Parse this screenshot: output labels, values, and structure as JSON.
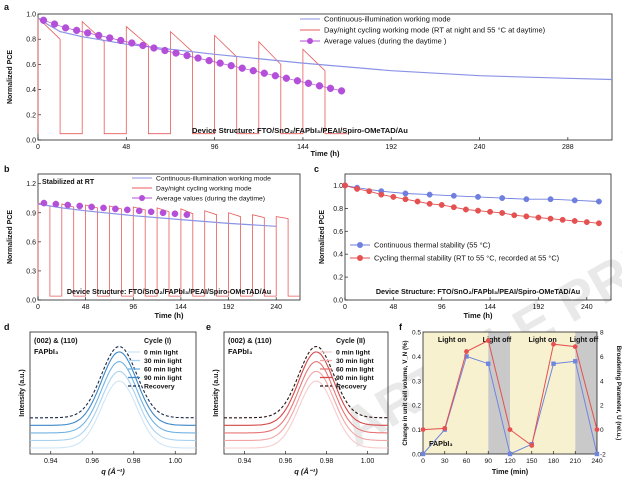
{
  "watermark": "ARTICLE PREVIEW",
  "chart_data": [
    {
      "panel": "a",
      "type": "line",
      "xlabel": "Time (h)",
      "ylabel": "Normalized PCE",
      "xlim": [
        0,
        312
      ],
      "ylim": [
        0,
        1.0
      ],
      "xticks": [
        0,
        48,
        96,
        144,
        192,
        240,
        288
      ],
      "yticks": [
        0.0,
        0.2,
        0.4,
        0.6,
        0.8,
        1.0
      ],
      "annotation": "Device Structure: FTO/SnO₂/FAPbI₃/PEAI/Spiro-OMeTAD/Au",
      "legend": [
        "Continuous-illumination working mode",
        "Day/night cycling working mode (RT at night and 55 °C at daytime)",
        "Average values (during the daytime )"
      ],
      "series": [
        {
          "name": "Continuous-illumination working mode",
          "color": "#8b93e6",
          "x": [
            0,
            5,
            12,
            24,
            48,
            96,
            144,
            192,
            240,
            288,
            312
          ],
          "y": [
            0.97,
            0.92,
            0.86,
            0.82,
            0.76,
            0.68,
            0.61,
            0.55,
            0.51,
            0.49,
            0.48
          ]
        },
        {
          "name": "Day/night cycling working mode (RT at night and 55 °C at daytime)",
          "color": "#e85a5a",
          "cycles": {
            "start": 0,
            "period": 24,
            "day_hours": 12,
            "count": 7,
            "night_value": 0.05,
            "day_start": [
              0.97,
              0.94,
              0.9,
              0.86,
              0.83,
              0.78,
              0.72
            ],
            "day_end": [
              0.8,
              0.78,
              0.75,
              0.7,
              0.66,
              0.6,
              0.55
            ]
          }
        },
        {
          "name": "Average values (during the daytime )",
          "color": "#b44fd9",
          "x": [
            3,
            9,
            15,
            21,
            27,
            33,
            39,
            45,
            51,
            57,
            63,
            69,
            75,
            81,
            87,
            93,
            99,
            105,
            111,
            117,
            123,
            129,
            135,
            141,
            147,
            153,
            159,
            165
          ],
          "y": [
            0.95,
            0.92,
            0.89,
            0.87,
            0.85,
            0.83,
            0.81,
            0.79,
            0.77,
            0.75,
            0.73,
            0.71,
            0.69,
            0.67,
            0.65,
            0.63,
            0.61,
            0.59,
            0.57,
            0.55,
            0.53,
            0.51,
            0.49,
            0.47,
            0.45,
            0.43,
            0.41,
            0.39
          ]
        }
      ]
    },
    {
      "panel": "b",
      "type": "line",
      "xlabel": "Time (h)",
      "ylabel": "Normalized PCE",
      "xlim": [
        0,
        264
      ],
      "ylim": [
        0,
        1.3
      ],
      "xticks": [
        0,
        48,
        96,
        144,
        192,
        240
      ],
      "yticks": [
        0.0,
        0.3,
        0.6,
        0.9,
        1.2
      ],
      "stabilized_label": "Stabilized at RT",
      "annotation": "Device Structure: FTO/SnO₂/FAPbI₃/PEAI/Spiro-OMeTAD/Au",
      "legend": [
        "Continuous-illumination working mode",
        "Day/night cycling working mode",
        "Average values (during the daytime)"
      ],
      "series": [
        {
          "name": "Continuous-illumination working mode",
          "color": "#8b93e6",
          "x": [
            0,
            24,
            48,
            96,
            144,
            192,
            240
          ],
          "y": [
            0.99,
            0.95,
            0.92,
            0.87,
            0.83,
            0.79,
            0.76
          ]
        },
        {
          "name": "Day/night cycling working mode",
          "color": "#e85a5a",
          "cycles": {
            "start": 0,
            "period": 24,
            "day_hours": 12,
            "count": 11,
            "night_value": 0.04,
            "day_start": [
              1.0,
              0.99,
              0.98,
              0.97,
              0.96,
              0.95,
              0.94,
              0.92,
              0.9,
              0.88,
              0.86
            ],
            "day_end": [
              0.97,
              0.96,
              0.95,
              0.94,
              0.93,
              0.91,
              0.89,
              0.88,
              0.86,
              0.85,
              0.84
            ]
          }
        },
        {
          "name": "Average values (during the daytime)",
          "color": "#b44fd9",
          "x": [
            6,
            18,
            30,
            42,
            54,
            66,
            78,
            90,
            102,
            114,
            126,
            138,
            150
          ],
          "y": [
            1.0,
            0.99,
            0.98,
            0.97,
            0.96,
            0.95,
            0.94,
            0.93,
            0.92,
            0.91,
            0.9,
            0.89,
            0.88
          ]
        }
      ]
    },
    {
      "panel": "c",
      "type": "line",
      "xlabel": "Time (h)",
      "ylabel": "Normalized PCE",
      "xlim": [
        0,
        264
      ],
      "ylim": [
        0,
        1.1
      ],
      "xticks": [
        0,
        48,
        96,
        144,
        192,
        240
      ],
      "yticks": [
        0.0,
        0.2,
        0.4,
        0.6,
        0.8,
        1.0
      ],
      "annotation": "Device Structure: FTO/SnO₂/FAPbI₃/PEAI/Spiro-OMeTAD/Au",
      "legend": [
        "Continuous thermal stability (55 °C)",
        "Cycling thermal stability (RT to 55 °C, recorded at 55 °C)"
      ],
      "series": [
        {
          "name": "Continuous thermal stability (55 °C)",
          "color": "#6f7fe0",
          "x": [
            0,
            12,
            36,
            60,
            84,
            108,
            132,
            156,
            180,
            204,
            228,
            252
          ],
          "y": [
            1.0,
            0.98,
            0.95,
            0.93,
            0.92,
            0.91,
            0.9,
            0.89,
            0.88,
            0.88,
            0.87,
            0.86
          ]
        },
        {
          "name": "Cycling thermal stability (RT to 55 °C, recorded at 55 °C)",
          "color": "#e55050",
          "x": [
            0,
            12,
            24,
            36,
            48,
            60,
            72,
            84,
            96,
            108,
            120,
            132,
            144,
            156,
            168,
            180,
            192,
            204,
            216,
            228,
            240,
            252
          ],
          "y": [
            1.0,
            0.97,
            0.95,
            0.92,
            0.9,
            0.88,
            0.86,
            0.84,
            0.83,
            0.81,
            0.79,
            0.78,
            0.77,
            0.76,
            0.74,
            0.73,
            0.72,
            0.71,
            0.7,
            0.69,
            0.68,
            0.67
          ]
        }
      ]
    },
    {
      "panel": "d",
      "type": "line",
      "xlabel": "q (Å⁻¹)",
      "ylabel": "Intensity (a.u.)",
      "xlim": [
        0.93,
        1.01
      ],
      "xticks": [
        0.94,
        0.96,
        0.98,
        1.0
      ],
      "peak_label": "(002) & (110)",
      "material_label": "FAPbI₃",
      "legend_title": "Cycle (I)",
      "legend": [
        "0 min light",
        "30 min light",
        "60 min light",
        "90 min light",
        "Recovery"
      ],
      "peak_center": 0.973,
      "series": [
        {
          "name": "0 min light",
          "color": "#cfe6f7",
          "amplitude": 0.62,
          "offset": 0.0
        },
        {
          "name": "30 min light",
          "color": "#a9d2f0",
          "amplitude": 0.64,
          "offset": 0.07
        },
        {
          "name": "60 min light",
          "color": "#73b3e3",
          "amplitude": 0.66,
          "offset": 0.14
        },
        {
          "name": "90 min light",
          "color": "#3f87c8",
          "amplitude": 0.68,
          "offset": 0.21
        },
        {
          "name": "Recovery",
          "color": "#1a2a4a",
          "amplitude": 0.66,
          "offset": 0.28,
          "dashed": true
        }
      ]
    },
    {
      "panel": "e",
      "type": "line",
      "xlabel": "q (Å⁻¹)",
      "ylabel": "Intensity (a.u.)",
      "xlim": [
        0.93,
        1.01
      ],
      "xticks": [
        0.94,
        0.96,
        0.98,
        1.0
      ],
      "peak_label": "(002) & (110)",
      "material_label": "FAPbI₃",
      "legend_title": "Cycle (II)",
      "legend": [
        "0 min light",
        "30 min light",
        "60 min light",
        "90 min light",
        "Recovery"
      ],
      "peak_center": 0.975,
      "series": [
        {
          "name": "0 min light",
          "color": "#f8cccc",
          "amplitude": 0.62,
          "offset": 0.0
        },
        {
          "name": "30 min light",
          "color": "#f2a5a5",
          "amplitude": 0.64,
          "offset": 0.07
        },
        {
          "name": "60 min light",
          "color": "#e87575",
          "amplitude": 0.66,
          "offset": 0.14
        },
        {
          "name": "90 min light",
          "color": "#d64848",
          "amplitude": 0.68,
          "offset": 0.21
        },
        {
          "name": "Recovery",
          "color": "#2a1414",
          "amplitude": 0.66,
          "offset": 0.28,
          "dashed": true
        }
      ]
    },
    {
      "panel": "f",
      "type": "line",
      "xlabel": "Time (min)",
      "ylabel": "Change in unit cell volume, V_N (%)",
      "ylabel_right": "Broadening Parameter, U (rel.u.)",
      "xlim": [
        0,
        240
      ],
      "ylim": [
        0,
        0.5
      ],
      "ylim_right": [
        -2,
        8
      ],
      "xticks": [
        0,
        30,
        60,
        90,
        120,
        150,
        180,
        210,
        240
      ],
      "yticks": [
        0.0,
        0.1,
        0.2,
        0.3,
        0.4,
        0.5
      ],
      "yticks_right": [
        -2,
        0,
        2,
        4,
        6,
        8
      ],
      "material_label": "FAPbI₃",
      "regions": [
        {
          "label": "Light on",
          "from": 0,
          "to": 90,
          "fill": "#f7f1cf"
        },
        {
          "label": "Light off",
          "from": 90,
          "to": 120,
          "fill": "#c9c9c9"
        },
        {
          "label": "Light on",
          "from": 120,
          "to": 210,
          "fill": "#f7f1cf"
        },
        {
          "label": "Light off",
          "from": 210,
          "to": 240,
          "fill": "#c9c9c9"
        }
      ],
      "series": [
        {
          "name": "Change in unit cell volume",
          "color": "#6f86e0",
          "axis": "left",
          "x": [
            0,
            30,
            60,
            90,
            120,
            150,
            180,
            210,
            240
          ],
          "y": [
            0.0,
            0.1,
            0.4,
            0.37,
            0.0,
            0.04,
            0.37,
            0.38,
            0.0
          ]
        },
        {
          "name": "Broadening Parameter",
          "color": "#e55050",
          "axis": "right",
          "x": [
            0,
            30,
            60,
            90,
            120,
            150,
            180,
            210,
            240
          ],
          "y": [
            0.0,
            0.1,
            6.4,
            7.3,
            0.0,
            -1.3,
            7.0,
            6.8,
            0.0
          ]
        }
      ]
    }
  ]
}
